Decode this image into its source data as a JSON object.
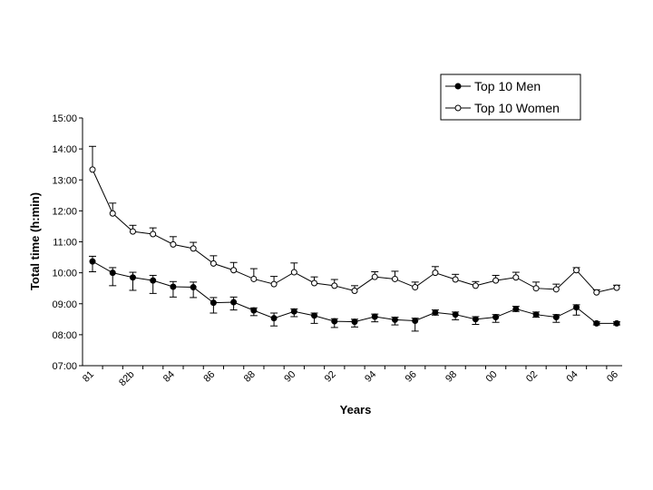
{
  "chart_data": {
    "type": "line",
    "title": "",
    "xlabel": "Years",
    "ylabel": "Total time (h:min)",
    "y_unit": "h:min",
    "ylim": [
      "07:00",
      "15:00"
    ],
    "y_ticks": [
      "07:00",
      "08:00",
      "09:00",
      "10:00",
      "11:00",
      "12:00",
      "13:00",
      "14:00",
      "15:00"
    ],
    "x_tick_labels": [
      "81",
      "82b",
      "84",
      "86",
      "88",
      "90",
      "92",
      "94",
      "96",
      "98",
      "00",
      "02",
      "04",
      "06"
    ],
    "grid": false,
    "legend_position": "top-right",
    "error_bars": true,
    "x": [
      1981,
      1982,
      1983,
      1984,
      1985,
      1986,
      1987,
      1988,
      1989,
      1990,
      1991,
      1992,
      1993,
      1994,
      1995,
      1996,
      1997,
      1998,
      1999,
      2000,
      2001,
      2002,
      2003,
      2004,
      2005,
      2006,
      2007
    ],
    "series": [
      {
        "name": "Top 10 Men",
        "marker": "filled-circle",
        "color": "#000000",
        "values": [
          "10:22",
          "10:00",
          "09:51",
          "09:45",
          "09:33",
          "09:32",
          "09:02",
          "09:03",
          "08:47",
          "08:32",
          "08:45",
          "08:37",
          "08:26",
          "08:25",
          "08:35",
          "08:29",
          "08:27",
          "08:43",
          "08:39",
          "08:30",
          "08:34",
          "08:50",
          "08:39",
          "08:34",
          "08:53",
          "08:22",
          "08:22"
        ],
        "error_plus": [
          "00:10",
          "00:10",
          "00:10",
          "00:10",
          "00:10",
          "00:10",
          "00:10",
          "00:10",
          "00:05",
          "00:10",
          "00:05",
          "00:05",
          "00:05",
          "00:05",
          "00:05",
          "00:05",
          "00:05",
          "00:05",
          "00:05",
          "00:05",
          "00:05",
          "00:05",
          "00:05",
          "00:05",
          "00:05",
          "00:03",
          "00:03"
        ],
        "error_minus": [
          "00:20",
          "00:25",
          "00:25",
          "00:25",
          "00:20",
          "00:20",
          "00:20",
          "00:15",
          "00:10",
          "00:15",
          "00:10",
          "00:15",
          "00:12",
          "00:10",
          "00:10",
          "00:10",
          "00:20",
          "00:05",
          "00:10",
          "00:10",
          "00:10",
          "00:05",
          "00:05",
          "00:10",
          "00:15",
          "00:03",
          "00:03"
        ]
      },
      {
        "name": "Top 10 Women",
        "marker": "open-circle",
        "color": "#000000",
        "values": [
          "13:20",
          "11:55",
          "11:20",
          "11:15",
          "10:55",
          "10:47",
          "10:18",
          "10:05",
          "09:48",
          "09:38",
          "10:01",
          "09:40",
          "09:35",
          "09:25",
          "09:52",
          "09:48",
          "09:32",
          "10:00",
          "09:47",
          "09:35",
          "09:45",
          "09:51",
          "09:30",
          "09:28",
          "10:05",
          "09:22",
          "09:31"
        ],
        "error_plus": [
          "00:45",
          "00:20",
          "00:12",
          "00:12",
          "00:15",
          "00:12",
          "00:15",
          "00:15",
          "00:20",
          "00:15",
          "00:18",
          "00:12",
          "00:12",
          "00:10",
          "00:10",
          "00:15",
          "00:10",
          "00:12",
          "00:10",
          "00:08",
          "00:10",
          "00:10",
          "00:12",
          "00:10",
          "00:05",
          "00:05",
          "00:05"
        ],
        "error_minus": [
          "00:00",
          "00:00",
          "00:00",
          "00:00",
          "00:00",
          "00:00",
          "00:00",
          "00:00",
          "00:00",
          "00:00",
          "00:00",
          "00:00",
          "00:00",
          "00:00",
          "00:00",
          "00:00",
          "00:00",
          "00:00",
          "00:00",
          "00:00",
          "00:00",
          "00:00",
          "00:00",
          "00:00",
          "00:00",
          "00:00",
          "00:00"
        ]
      }
    ]
  }
}
